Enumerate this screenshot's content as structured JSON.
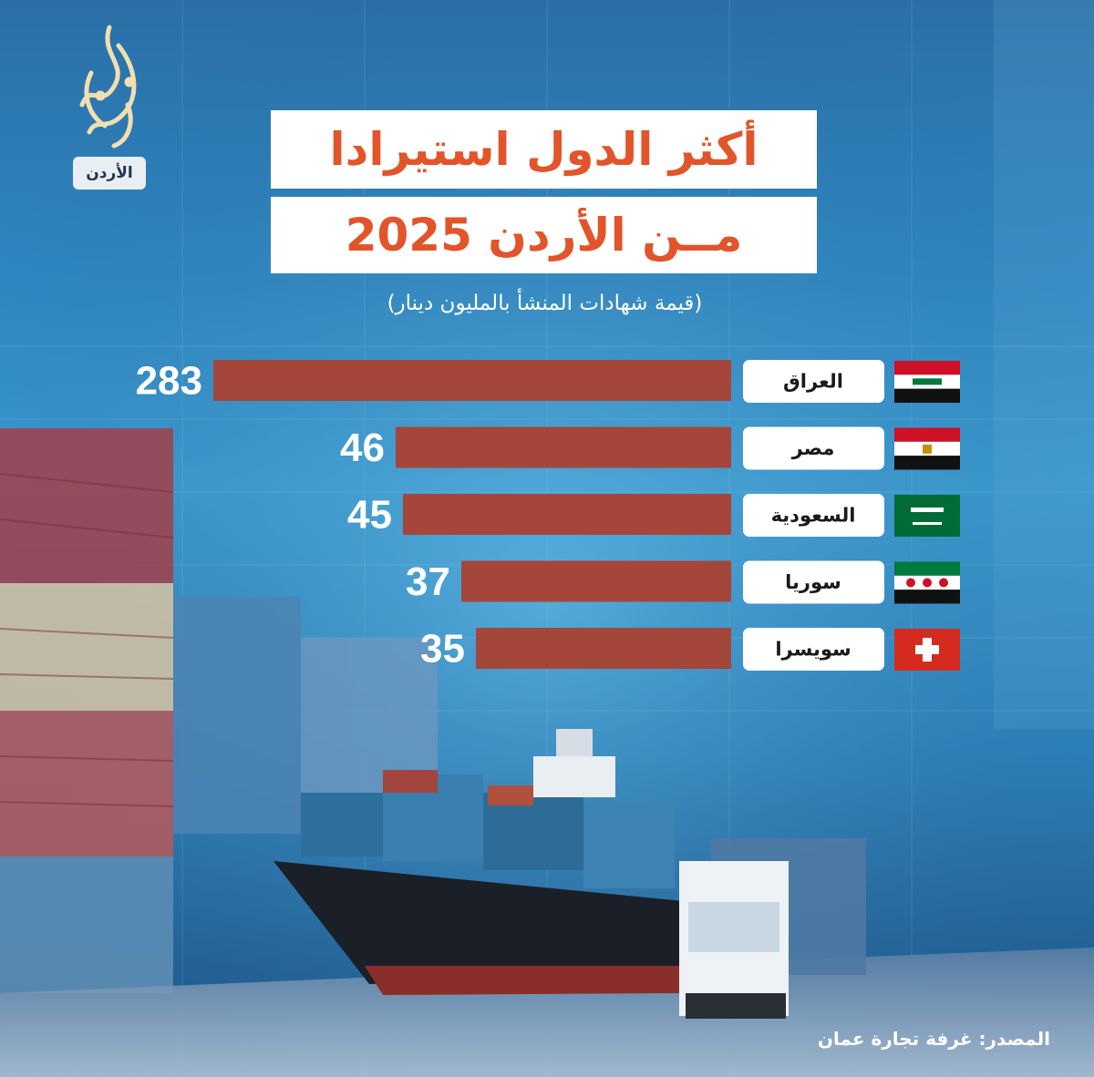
{
  "brand": {
    "badge": "الأردن"
  },
  "header": {
    "title_line1": "أكثر الدول استيرادا",
    "title_line2": "مــن الأردن 2025",
    "subtitle": "(قيمة شهادات المنشأ بالمليون دينار)"
  },
  "footer": {
    "source": "المصدر: غرفة تجارة عمان"
  },
  "colors": {
    "bar": "#a5463a",
    "title_text": "#e2542a",
    "label_bg": "#ffffff"
  },
  "chart_data": {
    "type": "bar",
    "orientation": "horizontal",
    "categories": [
      "العراق",
      "مصر",
      "السعودية",
      "سوريا",
      "سويسرا"
    ],
    "flags": [
      "iraq-flag-icon",
      "egypt-flag-icon",
      "saudi-flag-icon",
      "syria-flag-icon",
      "switzerland-flag-icon"
    ],
    "values": [
      283,
      46,
      45,
      37,
      35
    ],
    "title": "أكثر الدول استيرادا مــن الأردن 2025",
    "subtitle": "(قيمة شهادات المنشأ بالمليون دينار)",
    "grid": false,
    "legend": "none",
    "axis_break": true
  }
}
